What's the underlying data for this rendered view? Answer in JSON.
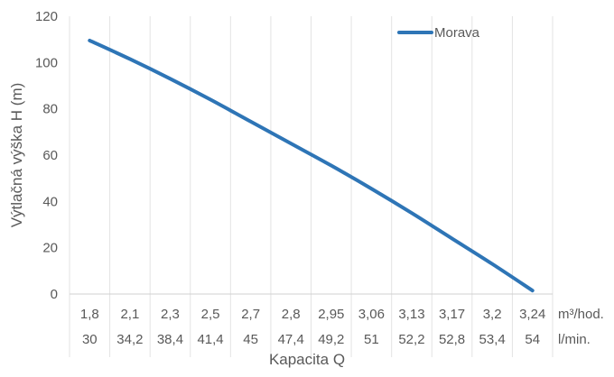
{
  "chart_data": {
    "type": "line",
    "ylabel": "Výtlačná výška H (m)",
    "xlabel": "Kapacita Q",
    "ylim": [
      0,
      120
    ],
    "yticks": [
      0,
      20,
      40,
      60,
      80,
      100,
      120
    ],
    "grid": "vertical",
    "legend_position": "top-right",
    "categories_row1": [
      "1,8",
      "2,1",
      "2,3",
      "2,5",
      "2,7",
      "2,8",
      "2,95",
      "3,06",
      "3,13",
      "3,17",
      "3,2",
      "3,24"
    ],
    "categories_row1_unit": "m³/hod.",
    "categories_row2": [
      "30",
      "34,2",
      "38,4",
      "41,4",
      "45",
      "47,4",
      "49,2",
      "51",
      "52,2",
      "52,8",
      "53,4",
      "54"
    ],
    "categories_row2_unit": "l/min.",
    "series": [
      {
        "name": "Morava",
        "color": "#2e75b6",
        "values": [
          109.5,
          101.5,
          93,
          84,
          74.5,
          65,
          55.5,
          45.5,
          35,
          24,
          13,
          1.5
        ]
      }
    ]
  }
}
